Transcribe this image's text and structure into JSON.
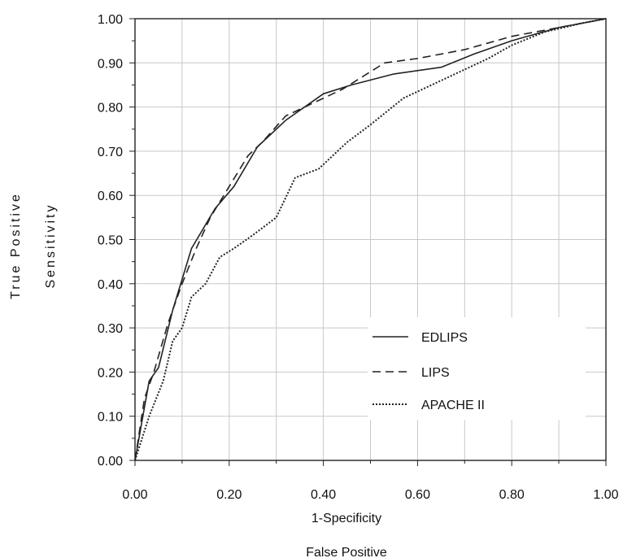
{
  "chart_data": {
    "type": "line",
    "xlabel": "1-Specificity",
    "xlabel2": "False Positive",
    "ylabel_outer": "True Positive",
    "ylabel_inner": "Sensitivity",
    "xlim": [
      0,
      1
    ],
    "ylim": [
      0,
      1
    ],
    "x_ticks": [
      "0.00",
      "0.20",
      "0.40",
      "0.60",
      "0.80",
      "1.00"
    ],
    "y_ticks": [
      "0.00",
      "0.10",
      "0.20",
      "0.30",
      "0.40",
      "0.50",
      "0.60",
      "0.70",
      "0.80",
      "0.90",
      "1.00"
    ],
    "grid": true,
    "legend_position": "bottom-right",
    "series": [
      {
        "name": "EDLIPS",
        "style": "solid",
        "x": [
          0.0,
          0.03,
          0.05,
          0.08,
          0.12,
          0.17,
          0.21,
          0.26,
          0.32,
          0.4,
          0.46,
          0.55,
          0.65,
          0.72,
          0.8,
          0.9,
          1.0
        ],
        "y": [
          0.0,
          0.18,
          0.21,
          0.34,
          0.48,
          0.57,
          0.62,
          0.71,
          0.77,
          0.83,
          0.85,
          0.875,
          0.89,
          0.92,
          0.95,
          0.98,
          1.0
        ]
      },
      {
        "name": "LIPS",
        "style": "dashed",
        "x": [
          0.0,
          0.02,
          0.04,
          0.07,
          0.1,
          0.13,
          0.16,
          0.2,
          0.24,
          0.27,
          0.32,
          0.38,
          0.44,
          0.53,
          0.6,
          0.7,
          0.8,
          0.9,
          1.0
        ],
        "y": [
          0.0,
          0.14,
          0.2,
          0.31,
          0.4,
          0.48,
          0.55,
          0.62,
          0.69,
          0.72,
          0.78,
          0.81,
          0.84,
          0.9,
          0.91,
          0.93,
          0.96,
          0.98,
          1.0
        ]
      },
      {
        "name": "APACHE II",
        "style": "dotted",
        "x": [
          0.0,
          0.03,
          0.06,
          0.08,
          0.1,
          0.12,
          0.15,
          0.18,
          0.21,
          0.25,
          0.3,
          0.34,
          0.39,
          0.45,
          0.5,
          0.57,
          0.67,
          0.75,
          0.8,
          0.87,
          0.95,
          1.0
        ],
        "y": [
          0.0,
          0.1,
          0.18,
          0.27,
          0.3,
          0.37,
          0.4,
          0.46,
          0.48,
          0.51,
          0.55,
          0.64,
          0.66,
          0.72,
          0.76,
          0.82,
          0.87,
          0.91,
          0.94,
          0.97,
          0.99,
          1.0
        ]
      }
    ]
  }
}
